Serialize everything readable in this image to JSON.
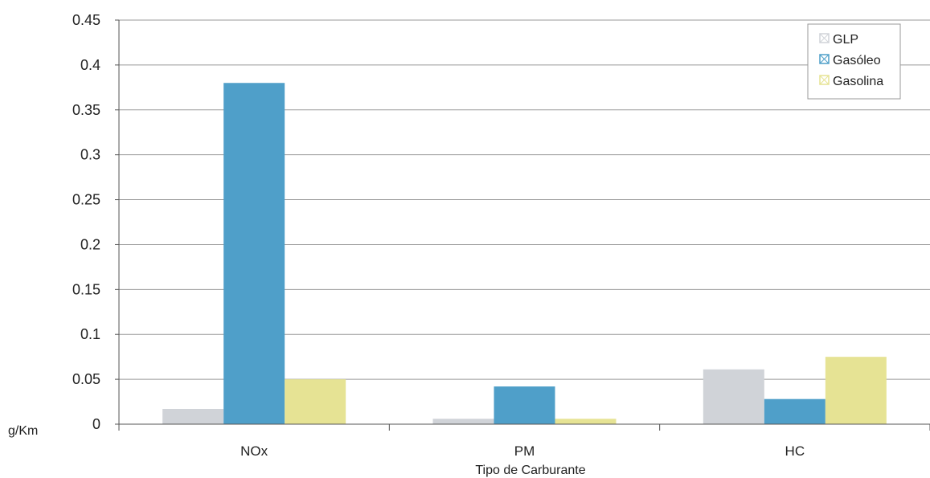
{
  "chart_data": {
    "type": "bar",
    "categories": [
      "NOx",
      "PM",
      "HC"
    ],
    "series": [
      {
        "name": "GLP",
        "color": "#d0d3d8",
        "values": [
          0.017,
          0.006,
          0.061
        ]
      },
      {
        "name": "Gasóleo",
        "color": "#4f9fc9",
        "values": [
          0.38,
          0.042,
          0.028
        ]
      },
      {
        "name": "Gasolina",
        "color": "#e6e394",
        "values": [
          0.05,
          0.006,
          0.075
        ]
      }
    ],
    "xlabel": "Tipo de Carburante",
    "ylabel": "g/Km",
    "ylim": [
      0,
      0.45
    ],
    "yticks": [
      "0",
      "0.05",
      "0.1",
      "0.15",
      "0.2",
      "0.25",
      "0.3",
      "0.35",
      "0.4",
      "0.45"
    ],
    "grid": true,
    "legend_position": "top-right"
  }
}
